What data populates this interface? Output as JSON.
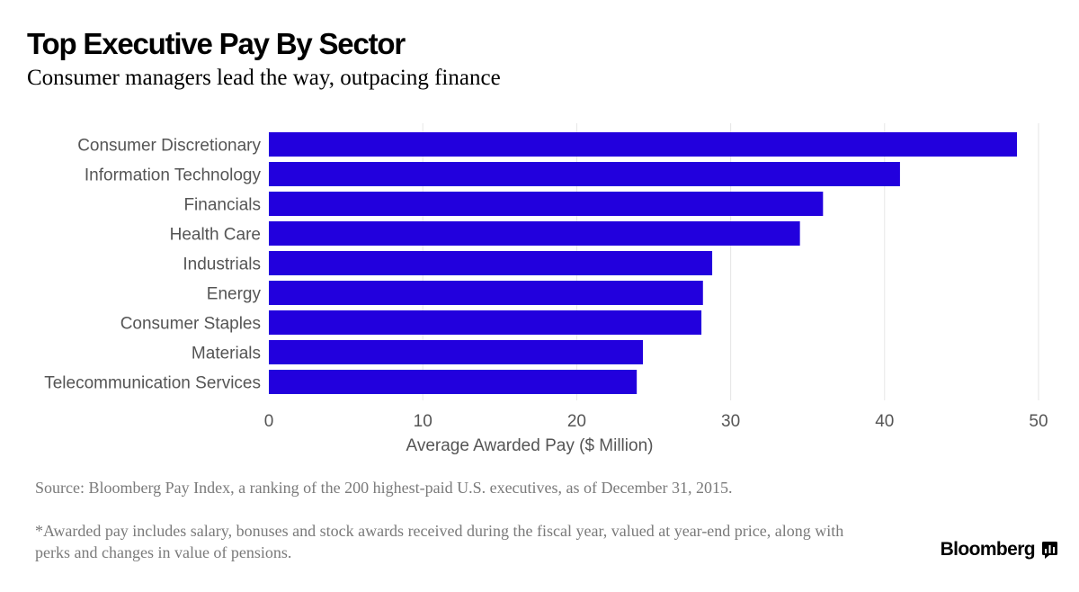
{
  "header": {
    "title": "Top Executive Pay By Sector",
    "subtitle": "Consumer managers lead the way, outpacing finance"
  },
  "chart_data": {
    "type": "bar",
    "orientation": "horizontal",
    "categories": [
      "Consumer Discretionary",
      "Information Technology",
      "Financials",
      "Health Care",
      "Industrials",
      "Energy",
      "Consumer Staples",
      "Materials",
      "Telecommunication Services"
    ],
    "values": [
      48.6,
      41.0,
      36.0,
      34.5,
      28.8,
      28.2,
      28.1,
      24.3,
      23.9
    ],
    "xlabel": "Average Awarded Pay ($ Million)",
    "ylabel": "",
    "xlim": [
      0,
      50
    ],
    "xticks": [
      "0",
      "10",
      "20",
      "30",
      "40",
      "50"
    ],
    "grid": true,
    "bar_color": "#2200dd"
  },
  "footer": {
    "source": "Source: Bloomberg Pay Index, a ranking of the 200 highest-paid U.S. executives, as of December 31, 2015.",
    "note": "*Awarded pay includes salary, bonuses and stock awards received during the fiscal year, valued at year-end price, along with perks and changes in value of pensions.",
    "brand": "Bloomberg",
    "brand_icon": "bloomberg-terminal-icon"
  }
}
